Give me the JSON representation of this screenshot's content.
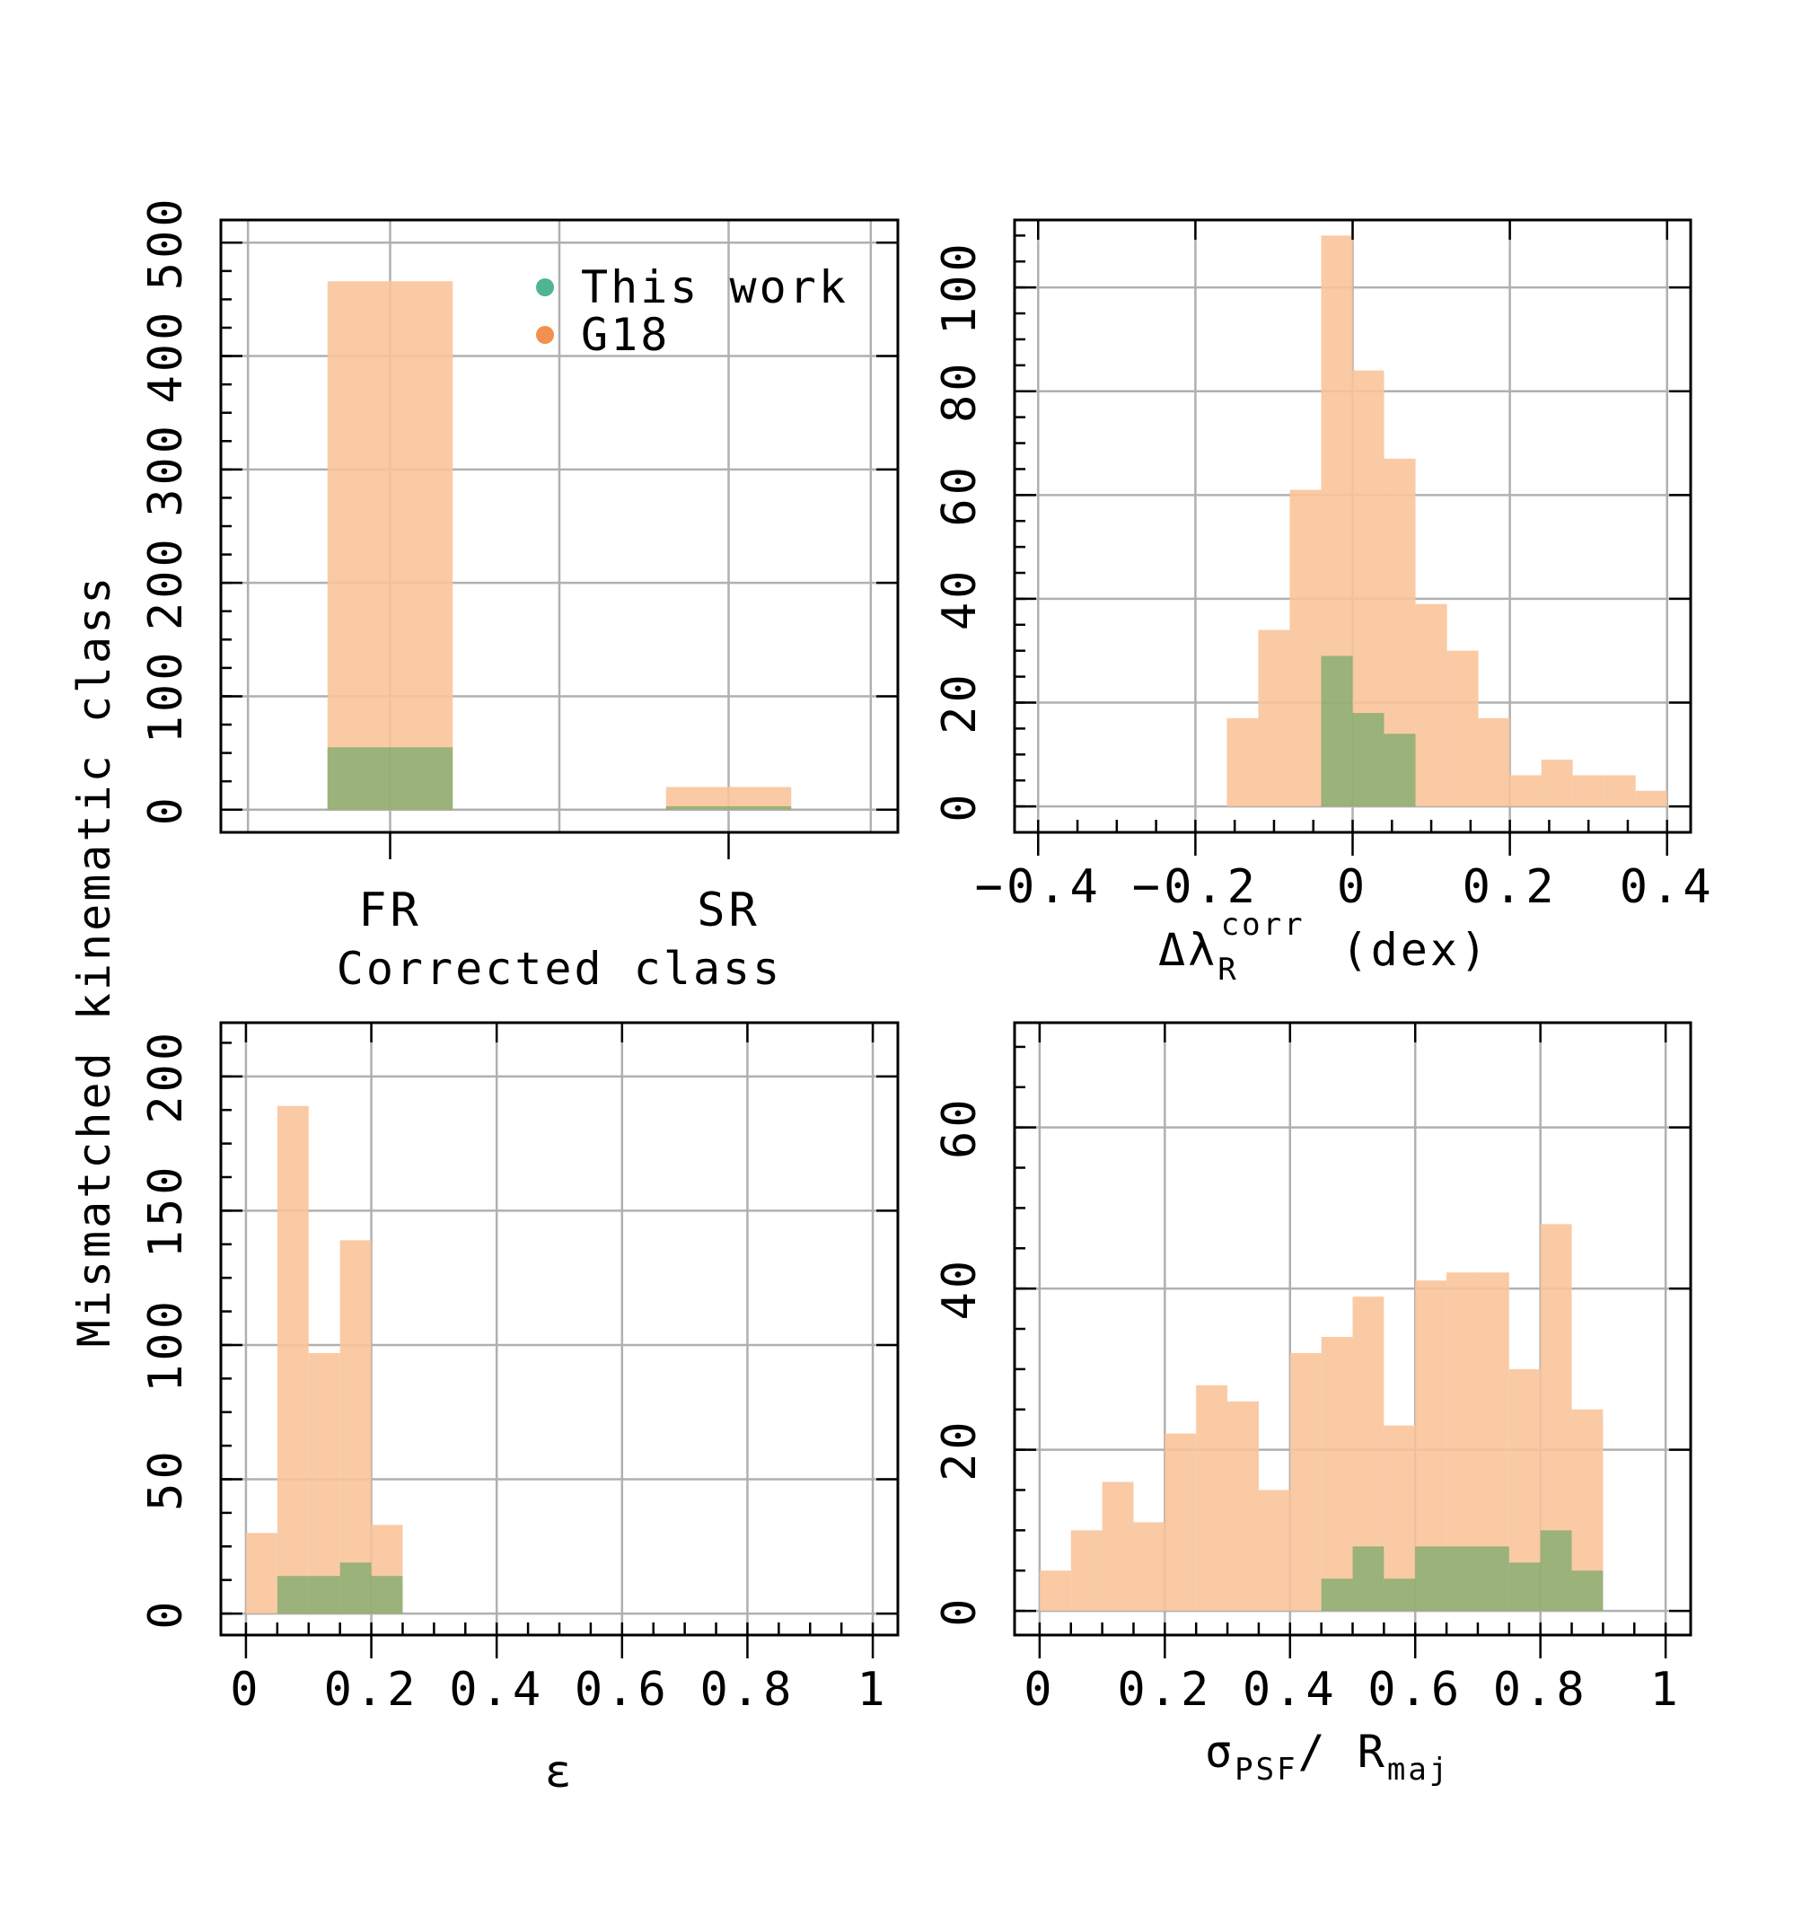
{
  "colors": {
    "this_work": "#4d9e57",
    "g18": "#f9c49b"
  },
  "shared_ylabel": "Mismatched kinematic class",
  "chart_data": [
    {
      "id": "class",
      "type": "bar",
      "xlabel": "Corrected class",
      "categories": [
        "FR",
        "SR"
      ],
      "series": [
        {
          "name": "G18",
          "values": [
            466,
            20
          ]
        },
        {
          "name": "This work",
          "values": [
            55,
            3
          ]
        }
      ],
      "ylim": [
        -20,
        520
      ],
      "yticks": [
        0,
        100,
        200,
        300,
        400,
        500
      ],
      "ytick_labels": [
        "0",
        "100",
        "200",
        "300",
        "400",
        "500"
      ],
      "grid": true,
      "legend": {
        "position": "top-right",
        "entries": [
          "This work",
          "G18"
        ]
      }
    },
    {
      "id": "dlam",
      "type": "bar",
      "xlabel_main": "Δλ",
      "xlabel_sub": "R",
      "xlabel_sup": "corr",
      "xlabel_tail": "(dex)",
      "bin_width": 0.04,
      "xlim": [
        -0.43,
        0.43
      ],
      "xticks": [
        -0.4,
        -0.2,
        0,
        0.2,
        0.4
      ],
      "xtick_labels": [
        "−0.4",
        "−0.2",
        "0",
        "0.2",
        "0.4"
      ],
      "ylim": [
        -5,
        113
      ],
      "yticks": [
        0,
        20,
        40,
        60,
        80,
        100
      ],
      "ytick_labels": [
        "0",
        "20",
        "40",
        "60",
        "80",
        "100"
      ],
      "grid": true,
      "series": [
        {
          "name": "G18",
          "bins": [
            [
              -0.16,
              17
            ],
            [
              -0.12,
              34
            ],
            [
              -0.08,
              61
            ],
            [
              -0.04,
              110
            ],
            [
              0.0,
              84
            ],
            [
              0.04,
              67
            ],
            [
              0.08,
              39
            ],
            [
              0.12,
              30
            ],
            [
              0.16,
              17
            ],
            [
              0.2,
              6
            ],
            [
              0.24,
              9
            ],
            [
              0.28,
              6
            ],
            [
              0.32,
              6
            ],
            [
              0.36,
              3
            ]
          ]
        },
        {
          "name": "This work",
          "bins": [
            [
              -0.04,
              29
            ],
            [
              0.0,
              18
            ],
            [
              0.04,
              14
            ]
          ]
        }
      ]
    },
    {
      "id": "eps",
      "type": "bar",
      "xlabel": "ε",
      "bin_width": 0.05,
      "xlim": [
        -0.04,
        1.04
      ],
      "xticks": [
        0,
        0.2,
        0.4,
        0.6,
        0.8,
        1
      ],
      "xtick_labels": [
        "0",
        "0.2",
        "0.4",
        "0.6",
        "0.8",
        "1"
      ],
      "ylim": [
        -8,
        220
      ],
      "yticks": [
        0,
        50,
        100,
        150,
        200
      ],
      "ytick_labels": [
        "0",
        "50",
        "100",
        "150",
        "200"
      ],
      "grid": true,
      "series": [
        {
          "name": "G18",
          "bins": [
            [
              0.0,
              30
            ],
            [
              0.05,
              189
            ],
            [
              0.1,
              97
            ],
            [
              0.15,
              139
            ],
            [
              0.2,
              33
            ]
          ]
        },
        {
          "name": "This work",
          "bins": [
            [
              0.05,
              14
            ],
            [
              0.1,
              14
            ],
            [
              0.15,
              19
            ],
            [
              0.2,
              14
            ]
          ]
        }
      ]
    },
    {
      "id": "psf",
      "type": "bar",
      "xlabel_main": "σ",
      "xlabel_sub": "PSF",
      "xlabel_mid": "/ R",
      "xlabel_sub2": "maj",
      "bin_width": 0.05,
      "xlim": [
        -0.04,
        1.04
      ],
      "xticks": [
        0,
        0.2,
        0.4,
        0.6,
        0.8,
        1
      ],
      "xtick_labels": [
        "0",
        "0.2",
        "0.4",
        "0.6",
        "0.8",
        "1"
      ],
      "ylim": [
        -3,
        73
      ],
      "yticks": [
        0,
        20,
        40,
        60
      ],
      "ytick_labels": [
        "0",
        "20",
        "40",
        "60"
      ],
      "grid": true,
      "series": [
        {
          "name": "G18",
          "bins": [
            [
              0.0,
              5
            ],
            [
              0.05,
              10
            ],
            [
              0.1,
              16
            ],
            [
              0.15,
              11
            ],
            [
              0.2,
              22
            ],
            [
              0.25,
              28
            ],
            [
              0.3,
              26
            ],
            [
              0.35,
              15
            ],
            [
              0.4,
              32
            ],
            [
              0.45,
              34
            ],
            [
              0.5,
              39
            ],
            [
              0.55,
              23
            ],
            [
              0.6,
              41
            ],
            [
              0.65,
              42
            ],
            [
              0.7,
              42
            ],
            [
              0.75,
              30
            ],
            [
              0.8,
              48
            ],
            [
              0.85,
              25
            ]
          ]
        },
        {
          "name": "This work",
          "bins": [
            [
              0.45,
              4
            ],
            [
              0.5,
              8
            ],
            [
              0.55,
              4
            ],
            [
              0.6,
              8
            ],
            [
              0.65,
              8
            ],
            [
              0.7,
              8
            ],
            [
              0.75,
              6
            ],
            [
              0.8,
              10
            ],
            [
              0.85,
              5
            ]
          ]
        }
      ]
    }
  ]
}
